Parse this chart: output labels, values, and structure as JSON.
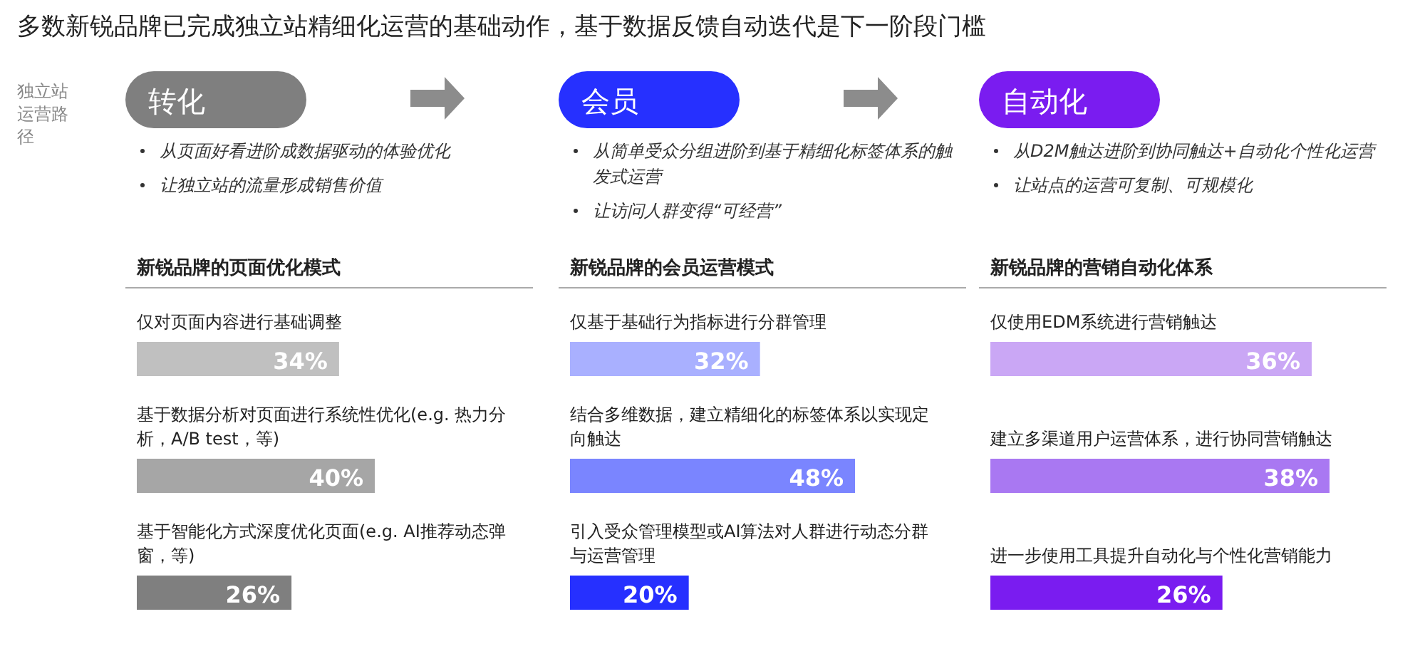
{
  "chart_data": [
    {
      "type": "other",
      "title": "多数新锐品牌已完成独立站精细化运营的基础动作，基于数据反馈自动迭代是下一阶段门槛",
      "annotations": [
        "独立站运营路径"
      ]
    },
    {
      "type": "bar",
      "orientation": "horizontal",
      "title": "新锐品牌的页面优化模式",
      "annotations": [
        "转化",
        "从页面好看进阶成数据驱动的体验优化",
        "让独立站的流量形成销售价值"
      ],
      "categories": [
        "仅对页面内容进行基础调整",
        "基于数据分析对页面进行系统性优化(e.g. 热力分析，A/B test，等)",
        "基于智能化方式深度优化页面(e.g. AI推荐动态弹窗，等)"
      ],
      "values": [
        34,
        40,
        26
      ],
      "value_labels": [
        "34%",
        "40%",
        "26%"
      ],
      "colors": [
        "#c0c0c0",
        "#a6a6a6",
        "#7f7f7f"
      ]
    },
    {
      "type": "bar",
      "orientation": "horizontal",
      "title": "新锐品牌的会员运营模式",
      "annotations": [
        "会员",
        "从简单受众分组进阶到基于精细化标签体系的触发式运营",
        "让访问人群变得“可经营”"
      ],
      "categories": [
        "仅基于基础行为指标进行分群管理",
        "结合多维数据，建立精细化的标签体系以实现定向触达",
        "引入受众管理模型或AI算法对人群进行动态分群与运营管理"
      ],
      "values": [
        32,
        48,
        20
      ],
      "value_labels": [
        "32%",
        "48%",
        "20%"
      ],
      "colors": [
        "#a9b0ff",
        "#7a85ff",
        "#2630ff"
      ]
    },
    {
      "type": "bar",
      "orientation": "horizontal",
      "title": "新锐品牌的营销自动化体系",
      "annotations": [
        "自动化",
        "从D2M触达进阶到协同触达+自动化个性化运营",
        "让站点的运营可复制、可规模化"
      ],
      "categories": [
        "仅使用EDM系统进行营销触达",
        "建立多渠道用户运营体系，进行协同营销触达",
        "进一步使用工具提升自动化与个性化营销能力"
      ],
      "values": [
        36,
        38,
        26
      ],
      "value_labels": [
        "36%",
        "38%",
        "26%"
      ],
      "colors": [
        "#caa7f5",
        "#a978f2",
        "#7a1cf0"
      ]
    }
  ]
}
